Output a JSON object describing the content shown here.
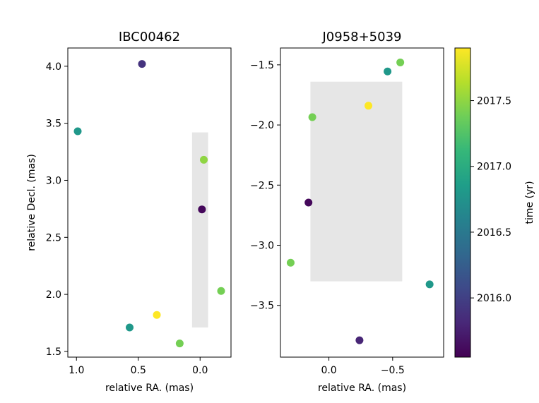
{
  "chart_data": [
    {
      "type": "scatter",
      "title": "IBC00462",
      "xlabel": "relative RA. (mas)",
      "ylabel": "relative Decl. (mas)",
      "xlim": [
        1.07,
        -0.25
      ],
      "ylim": [
        1.45,
        4.16
      ],
      "xticks": [
        1.0,
        0.5,
        0.0
      ],
      "xtick_labels": [
        "1.0",
        "0.5",
        "0.0"
      ],
      "yticks": [
        1.5,
        2.0,
        2.5,
        3.0,
        3.5,
        4.0
      ],
      "ytick_labels": [
        "1.5",
        "2.0",
        "2.5",
        "3.0",
        "3.5",
        "4.0"
      ],
      "shaded_region": {
        "x": [
          0.065,
          -0.065
        ],
        "y": [
          1.71,
          3.42
        ],
        "color": "#e6e6e6"
      },
      "points": [
        {
          "x": 0.47,
          "y": 4.02,
          "time": 2015.9
        },
        {
          "x": 0.99,
          "y": 3.43,
          "time": 2016.8
        },
        {
          "x": -0.03,
          "y": 3.18,
          "time": 2017.5
        },
        {
          "x": -0.015,
          "y": 2.745,
          "time": 2015.6
        },
        {
          "x": -0.17,
          "y": 2.03,
          "time": 2017.4
        },
        {
          "x": 0.35,
          "y": 1.82,
          "time": 2017.9
        },
        {
          "x": 0.57,
          "y": 1.71,
          "time": 2016.8
        },
        {
          "x": 0.165,
          "y": 1.57,
          "time": 2017.4
        }
      ]
    },
    {
      "type": "scatter",
      "title": "J0958+5039",
      "xlabel": "relative RA. (mas)",
      "ylabel": "",
      "xlim": [
        0.38,
        -0.9
      ],
      "ylim": [
        -3.93,
        -1.36
      ],
      "xticks": [
        0.0,
        -0.5
      ],
      "xtick_labels": [
        "0.0",
        "−0.5"
      ],
      "yticks": [
        -3.5,
        -3.0,
        -2.5,
        -2.0,
        -1.5
      ],
      "ytick_labels": [
        "−3.5",
        "−3.0",
        "−2.5",
        "−2.0",
        "−1.5"
      ],
      "shaded_region": {
        "x": [
          0.145,
          -0.575
        ],
        "y": [
          -3.3,
          -1.64
        ],
        "color": "#e6e6e6"
      },
      "points": [
        {
          "x": -0.56,
          "y": -1.48,
          "time": 2017.4
        },
        {
          "x": -0.46,
          "y": -1.555,
          "time": 2016.8
        },
        {
          "x": -0.31,
          "y": -1.84,
          "time": 2017.9
        },
        {
          "x": 0.13,
          "y": -1.935,
          "time": 2017.4
        },
        {
          "x": 0.16,
          "y": -2.645,
          "time": 2015.6
        },
        {
          "x": 0.3,
          "y": -3.145,
          "time": 2017.4
        },
        {
          "x": -0.79,
          "y": -3.325,
          "time": 2016.8
        },
        {
          "x": -0.24,
          "y": -3.79,
          "time": 2015.8
        }
      ]
    }
  ],
  "colorbar": {
    "label": "time (yr)",
    "range": [
      2015.55,
      2017.9
    ],
    "ticks": [
      2016.0,
      2016.5,
      2017.0,
      2017.5
    ],
    "tick_labels": [
      "2016.0",
      "2016.5",
      "2017.0",
      "2017.5"
    ],
    "colormap": "viridis",
    "colors": [
      "#440154",
      "#482878",
      "#3e4989",
      "#31688e",
      "#26828e",
      "#1f9e89",
      "#35b779",
      "#6ece58",
      "#b5de2b",
      "#fde725"
    ]
  }
}
